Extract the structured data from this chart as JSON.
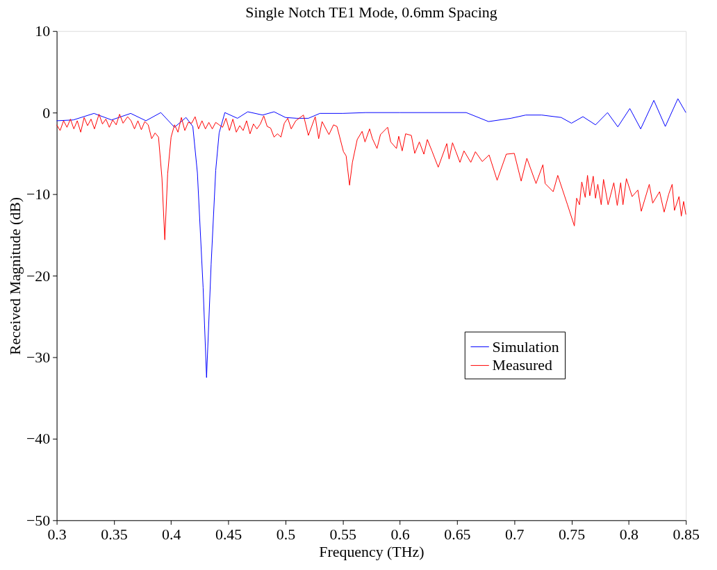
{
  "chart_data": {
    "type": "line",
    "title": "Single Notch TE1 Mode, 0.6mm Spacing",
    "xlabel": "Frequency (THz)",
    "ylabel": "Received Magnitude (dB)",
    "xlim": [
      0.3,
      0.85
    ],
    "xticks": [
      0.3,
      0.35,
      0.4,
      0.45,
      0.5,
      0.55,
      0.6,
      0.65,
      0.7,
      0.75,
      0.8,
      0.85
    ],
    "ylim": [
      -50,
      10
    ],
    "yticks": [
      -50,
      -40,
      -30,
      -20,
      -10,
      0,
      10
    ],
    "grid": false,
    "legend": "right",
    "marker": "none",
    "line_style": "solid",
    "series": [
      {
        "name": "Simulation",
        "color": "#0000ff",
        "x": [
          0.3,
          0.3145,
          0.3326,
          0.348,
          0.3647,
          0.378,
          0.391,
          0.403,
          0.413,
          0.419,
          0.423,
          0.428,
          0.431,
          0.435,
          0.439,
          0.442,
          0.447,
          0.458,
          0.467,
          0.48,
          0.49,
          0.5,
          0.51,
          0.52,
          0.53,
          0.55,
          0.57,
          0.6,
          0.63,
          0.658,
          0.6775,
          0.697,
          0.71,
          0.724,
          0.741,
          0.75,
          0.76,
          0.771,
          0.7815,
          0.7905,
          0.801,
          0.8105,
          0.822,
          0.832,
          0.843,
          0.85
        ],
        "values": [
          -1.0,
          -0.9,
          -0.1,
          -0.9,
          -0.1,
          -1.0,
          0.0,
          -1.8,
          -0.6,
          -1.7,
          -7.4,
          -21.5,
          -32.5,
          -18.6,
          -7.1,
          -2.5,
          0.0,
          -0.7,
          0.1,
          -0.3,
          0.1,
          -0.6,
          -0.7,
          -0.7,
          -0.1,
          -0.1,
          0.0,
          0.0,
          0.0,
          0.0,
          -1.1,
          -0.7,
          -0.3,
          -0.3,
          -0.6,
          -1.3,
          -0.5,
          -1.5,
          0.0,
          -1.75,
          0.5,
          -2.0,
          1.5,
          -1.7,
          1.7,
          0.0
        ]
      },
      {
        "name": "Measured",
        "color": "#ff0000",
        "x": [
          0.3,
          0.303,
          0.306,
          0.309,
          0.312,
          0.315,
          0.318,
          0.321,
          0.324,
          0.327,
          0.33,
          0.333,
          0.337,
          0.34,
          0.343,
          0.346,
          0.349,
          0.352,
          0.355,
          0.358,
          0.362,
          0.365,
          0.368,
          0.371,
          0.374,
          0.377,
          0.38,
          0.383,
          0.386,
          0.389,
          0.392,
          0.3945,
          0.397,
          0.4,
          0.403,
          0.406,
          0.409,
          0.412,
          0.415,
          0.418,
          0.421,
          0.424,
          0.427,
          0.43,
          0.433,
          0.436,
          0.439,
          0.442,
          0.445,
          0.448,
          0.451,
          0.454,
          0.457,
          0.46,
          0.463,
          0.466,
          0.469,
          0.472,
          0.475,
          0.478,
          0.481,
          0.484,
          0.487,
          0.49,
          0.493,
          0.496,
          0.499,
          0.502,
          0.505,
          0.509,
          0.5157,
          0.52,
          0.526,
          0.529,
          0.532,
          0.538,
          0.542,
          0.545,
          0.5507,
          0.553,
          0.556,
          0.5585,
          0.5627,
          0.567,
          0.5695,
          0.5735,
          0.576,
          0.58,
          0.583,
          0.5893,
          0.592,
          0.597,
          0.599,
          0.602,
          0.605,
          0.61,
          0.613,
          0.617,
          0.621,
          0.624,
          0.628,
          0.6335,
          0.641,
          0.643,
          0.646,
          0.649,
          0.6525,
          0.656,
          0.662,
          0.666,
          0.672,
          0.678,
          0.685,
          0.693,
          0.7,
          0.706,
          0.711,
          0.719,
          0.725,
          0.727,
          0.734,
          0.738,
          0.7465,
          0.7525,
          0.7545,
          0.757,
          0.759,
          0.762,
          0.764,
          0.766,
          0.769,
          0.771,
          0.773,
          0.776,
          0.778,
          0.782,
          0.787,
          0.79,
          0.793,
          0.795,
          0.798,
          0.803,
          0.808,
          0.811,
          0.818,
          0.821,
          0.827,
          0.831,
          0.835,
          0.838,
          0.84,
          0.844,
          0.846,
          0.848,
          0.85
        ],
        "values": [
          -1.5,
          -2.2,
          -1.0,
          -1.8,
          -0.8,
          -2.0,
          -1.0,
          -2.4,
          -0.6,
          -1.6,
          -0.8,
          -2.0,
          -0.2,
          -1.4,
          -0.8,
          -1.8,
          -0.9,
          -1.5,
          -0.2,
          -1.3,
          -0.5,
          -1.0,
          -2.0,
          -1.0,
          -2.1,
          -1.1,
          -1.5,
          -3.2,
          -2.5,
          -3.0,
          -8.0,
          -15.6,
          -7.5,
          -3.0,
          -1.5,
          -2.4,
          -0.6,
          -2.2,
          -1.2,
          -1.3,
          -0.5,
          -2.0,
          -1.0,
          -2.0,
          -1.2,
          -2.0,
          -1.2,
          -1.5,
          -1.8,
          -0.7,
          -2.2,
          -0.8,
          -2.4,
          -1.6,
          -2.2,
          -1.0,
          -2.6,
          -1.4,
          -2.0,
          -1.4,
          -0.4,
          -1.7,
          -1.9,
          -3.0,
          -2.6,
          -3.0,
          -1.3,
          -0.7,
          -2.0,
          -1.0,
          -0.3,
          -2.8,
          -0.5,
          -3.2,
          -1.1,
          -2.7,
          -1.5,
          -1.7,
          -4.8,
          -5.3,
          -8.9,
          -6.1,
          -3.3,
          -2.3,
          -3.6,
          -2.0,
          -3.2,
          -4.4,
          -2.7,
          -1.8,
          -3.6,
          -4.4,
          -2.9,
          -4.7,
          -2.6,
          -2.8,
          -5.0,
          -3.6,
          -5.1,
          -3.3,
          -4.7,
          -6.7,
          -3.8,
          -5.7,
          -3.7,
          -4.8,
          -6.1,
          -4.7,
          -6.1,
          -4.8,
          -6.0,
          -5.2,
          -8.3,
          -5.1,
          -5.0,
          -8.4,
          -5.6,
          -8.7,
          -6.4,
          -8.7,
          -9.7,
          -7.7,
          -11.3,
          -13.9,
          -10.5,
          -11.3,
          -8.5,
          -10.4,
          -7.7,
          -10.2,
          -7.8,
          -10.5,
          -8.8,
          -11.3,
          -8.2,
          -11.3,
          -8.6,
          -11.4,
          -8.6,
          -11.3,
          -8.1,
          -10.3,
          -9.5,
          -12.1,
          -8.8,
          -11.1,
          -9.7,
          -12.2,
          -10.0,
          -8.8,
          -12.0,
          -10.3,
          -12.7,
          -10.9,
          -12.5
        ]
      }
    ]
  }
}
